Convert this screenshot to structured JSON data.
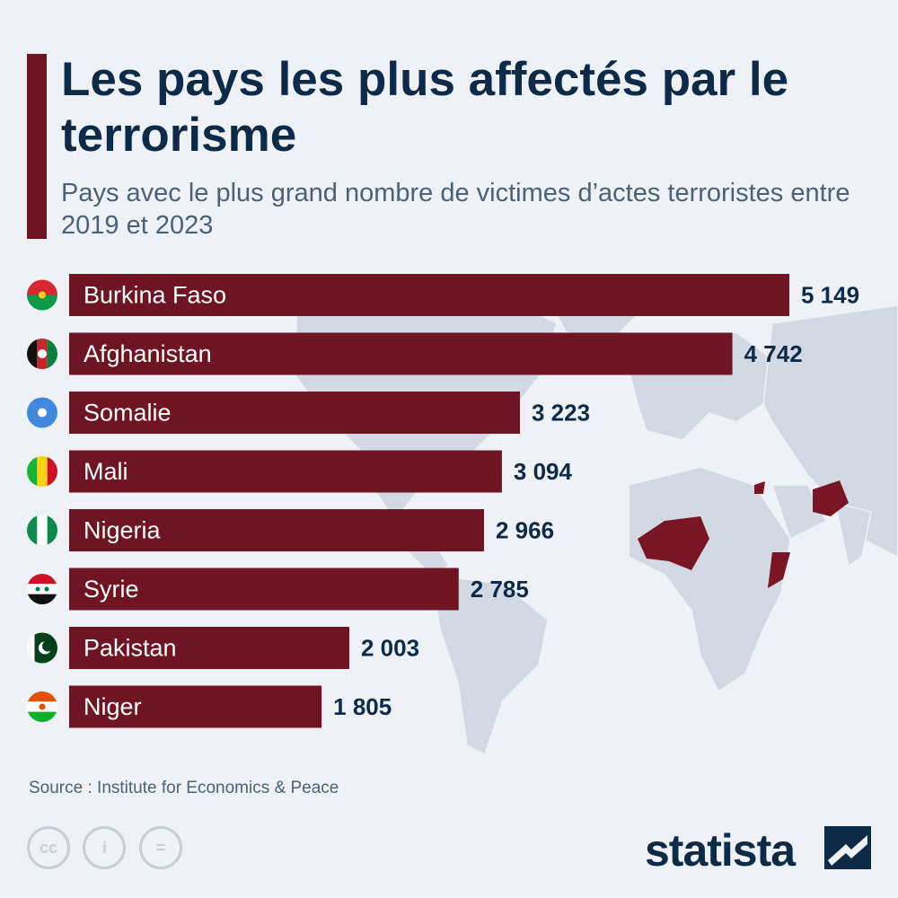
{
  "title": "Les pays les plus affectés par le terrorisme",
  "subtitle": "Pays avec le plus grand nombre de victimes d’actes terroristes entre 2019 et 2023",
  "source": "Source : Institute for Economics & Peace",
  "logo": "statista",
  "license_icons": [
    "cc",
    "i",
    "="
  ],
  "colors": {
    "bar": "#6e1423",
    "title": "#0f2a47",
    "subtitle": "#4d6175",
    "background": "#eef2f7",
    "map": "#cfd6df"
  },
  "chart_data": {
    "type": "bar",
    "orientation": "horizontal",
    "categories": [
      "Burkina Faso",
      "Afghanistan",
      "Somalie",
      "Mali",
      "Nigeria",
      "Syrie",
      "Pakistan",
      "Niger"
    ],
    "values": [
      5149,
      4742,
      3223,
      3094,
      2966,
      2785,
      2003,
      1805
    ],
    "value_labels": [
      "5 149",
      "4 742",
      "3 223",
      "3 094",
      "2 966",
      "2 785",
      "2 003",
      "1 805"
    ],
    "flags": [
      "burkina-faso-flag-icon",
      "afghanistan-flag-icon",
      "somalia-flag-icon",
      "mali-flag-icon",
      "nigeria-flag-icon",
      "syria-flag-icon",
      "pakistan-flag-icon",
      "niger-flag-icon"
    ],
    "xlim": [
      0,
      5149
    ],
    "title": "Les pays les plus affectés par le terrorisme",
    "xlabel": "",
    "ylabel": ""
  }
}
